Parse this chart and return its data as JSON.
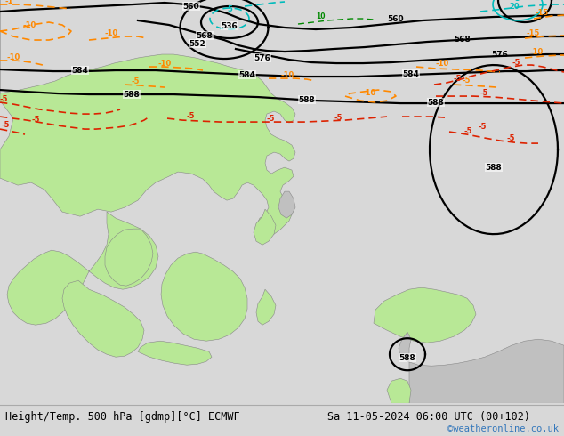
{
  "title_left": "Height/Temp. 500 hPa [gdmp][°C] ECMWF",
  "title_right": "Sa 11-05-2024 06:00 UTC (00+102)",
  "watermark": "©weatheronline.co.uk",
  "fig_width": 6.34,
  "fig_height": 4.9,
  "dpi": 100,
  "title_fontsize": 8.5,
  "watermark_fontsize": 7.5,
  "watermark_color": "#3377bb",
  "bg_color": "#d8d8d8",
  "land_green_color": "#b8e896",
  "land_gray_color": "#c0c0c0",
  "sea_color": "#d0d0d0",
  "black_lw": 1.6,
  "orange_lw": 1.2,
  "red_lw": 1.2,
  "cyan_lw": 1.2,
  "label_fs": 6.5,
  "contour_black": "#000000",
  "contour_orange": "#ff8800",
  "contour_red": "#dd2200",
  "contour_cyan": "#00bbbb",
  "contour_green": "#008800"
}
